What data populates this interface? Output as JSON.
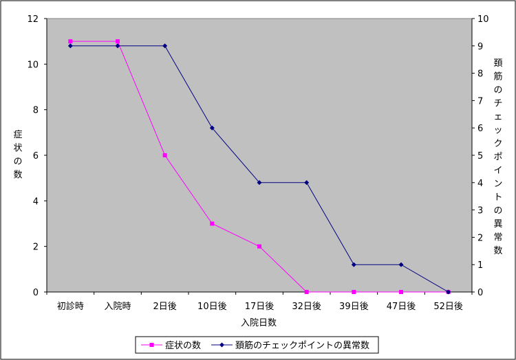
{
  "chart_data": {
    "type": "line",
    "categories": [
      "初診時",
      "入院時",
      "2日後",
      "10日後",
      "17日後",
      "32日後",
      "39日後",
      "47日後",
      "52日後"
    ],
    "xlabel": "入院日数",
    "ylabel_left": "症状の数",
    "ylabel_right": "頚筋のチェックポイントの異常数",
    "ylim_left": [
      0,
      12
    ],
    "yticks_left": [
      0,
      2,
      4,
      6,
      8,
      10,
      12
    ],
    "ylim_right": [
      0,
      10
    ],
    "yticks_right": [
      0,
      1,
      2,
      3,
      4,
      5,
      6,
      7,
      8,
      9,
      10
    ],
    "plot_background": "#c0c0c0",
    "grid": false,
    "legend_position": "bottom",
    "series": [
      {
        "name": "症状の数",
        "axis": "left",
        "color": "#ff00ff",
        "marker": "square",
        "values": [
          11,
          11,
          6,
          3,
          2,
          0,
          0,
          0,
          0
        ]
      },
      {
        "name": "頚筋のチェックポイントの異常数",
        "axis": "right",
        "color": "#000080",
        "marker": "diamond",
        "values": [
          9,
          9,
          9,
          6,
          4,
          4,
          1,
          1,
          0
        ]
      }
    ]
  }
}
